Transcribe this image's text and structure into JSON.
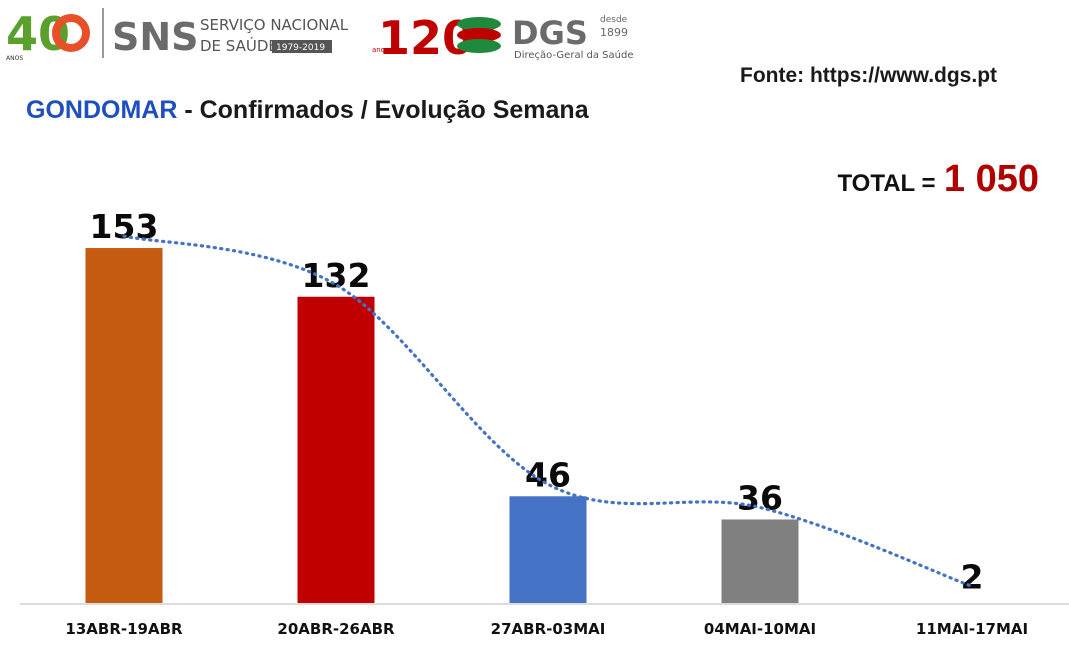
{
  "header": {
    "logos": {
      "sns_forty": "40",
      "sns_forty_caption": "ANOS",
      "sns_acronym": "SNS",
      "sns_name_line1": "SERVIÇO NACIONAL",
      "sns_name_line2": "DE SAÚDE",
      "sns_years": "1979-2019",
      "dgs_anniversary": "120",
      "dgs_anniversary_caption": "anos",
      "dgs_acronym": "DGS",
      "dgs_since_line1": "desde",
      "dgs_since_line2": "1899",
      "dgs_name": "Direção-Geral da Saúde"
    },
    "source": "Fonte: https://www.dgs.pt",
    "title_region": "GONDOMAR",
    "title_rest": " - Confirmados / Evolução Semana",
    "total_label": "TOTAL =",
    "total_value": "1 050"
  },
  "colors": {
    "region_title": "#1f4fbf",
    "total_value": "#b00000",
    "trendline": "#4472c4"
  },
  "chart_data": {
    "type": "bar",
    "title": "",
    "xlabel": "",
    "ylabel": "",
    "categories": [
      "13ABR-19ABR",
      "20ABR-26ABR",
      "27ABR-03MAI",
      "04MAI-10MAI",
      "11MAI-17MAI"
    ],
    "values": [
      153,
      132,
      46,
      36,
      2
    ],
    "bar_colors": [
      "#c55a11",
      "#c00000",
      "#4472c4",
      "#808080",
      "#ffffff"
    ],
    "ylim": [
      0,
      160
    ],
    "grid": false,
    "legend": "none",
    "trendline": "dotted polynomial"
  }
}
